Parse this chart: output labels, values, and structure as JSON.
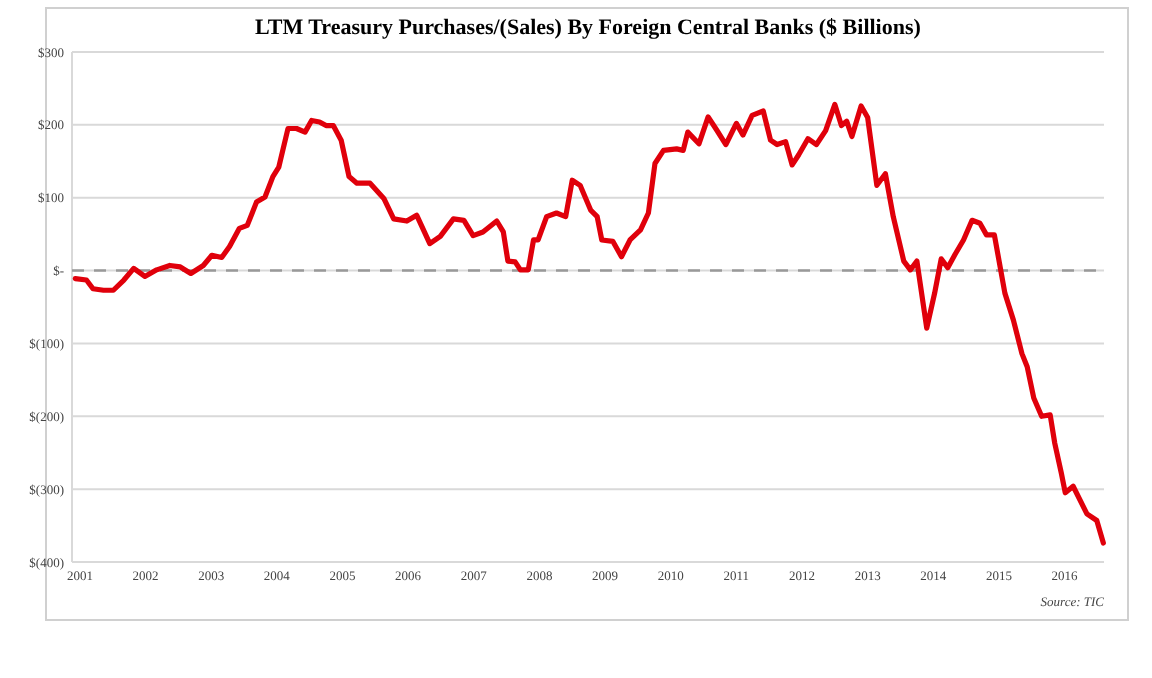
{
  "chart_data": {
    "type": "line",
    "title": "LTM Treasury Purchases/(Sales) By Foreign Central Banks ($ Billions)",
    "annotations": [
      "Source: TIC"
    ],
    "x": [
      2000.93,
      2001.1,
      2001.2,
      2001.36,
      2001.51,
      2001.67,
      2001.82,
      2001.99,
      2002.17,
      2002.37,
      2002.53,
      2002.69,
      2002.88,
      2003.01,
      2003.16,
      2003.28,
      2003.43,
      2003.55,
      2003.69,
      2003.82,
      2003.94,
      2004.03,
      2004.17,
      2004.3,
      2004.43,
      2004.53,
      2004.65,
      2004.75,
      2004.86,
      2004.98,
      2005.1,
      2005.22,
      2005.42,
      2005.63,
      2005.78,
      2005.98,
      2006.13,
      2006.33,
      2006.49,
      2006.69,
      2006.85,
      2006.99,
      2007.14,
      2007.35,
      2007.45,
      2007.52,
      2007.63,
      2007.71,
      2007.83,
      2007.91,
      2007.98,
      2008.11,
      2008.26,
      2008.4,
      2008.5,
      2008.62,
      2008.78,
      2008.88,
      2008.95,
      2009.12,
      2009.25,
      2009.38,
      2009.54,
      2009.66,
      2009.76,
      2009.89,
      2010.09,
      2010.19,
      2010.26,
      2010.43,
      2010.57,
      2010.7,
      2010.84,
      2011.0,
      2011.1,
      2011.24,
      2011.41,
      2011.52,
      2011.62,
      2011.75,
      2011.85,
      2011.95,
      2012.09,
      2012.22,
      2012.36,
      2012.5,
      2012.6,
      2012.68,
      2012.76,
      2012.9,
      2013.0,
      2013.14,
      2013.27,
      2013.39,
      2013.55,
      2013.65,
      2013.75,
      2013.9,
      2014.02,
      2014.12,
      2014.22,
      2014.33,
      2014.46,
      2014.59,
      2014.71,
      2014.81,
      2014.93,
      2015.09,
      2015.22,
      2015.35,
      2015.43,
      2015.53,
      2015.65,
      2015.78,
      2015.85,
      2015.95,
      2016.01,
      2016.13,
      2016.34,
      2016.49,
      2016.59
    ],
    "series": [
      {
        "color": "#e0000b",
        "values": [
          -11,
          -13,
          -25,
          -27,
          -27,
          -13,
          3,
          -8,
          1,
          7,
          5,
          -4,
          7,
          21,
          18,
          33,
          58,
          62,
          94,
          101,
          129,
          142,
          195,
          195,
          190,
          206,
          204,
          199,
          199,
          179,
          129,
          120,
          120,
          99,
          71,
          68,
          76,
          37,
          47,
          71,
          69,
          48,
          53,
          68,
          53,
          13,
          12,
          1,
          1,
          42,
          42,
          74,
          79,
          74,
          124,
          117,
          83,
          74,
          42,
          40,
          19,
          42,
          56,
          79,
          147,
          165,
          167,
          165,
          190,
          174,
          211,
          193,
          173,
          202,
          186,
          213,
          219,
          179,
          173,
          177,
          145,
          159,
          181,
          173,
          192,
          228,
          199,
          205,
          184,
          226,
          210,
          117,
          133,
          74,
          13,
          1,
          13,
          -79,
          -31,
          16,
          4,
          22,
          42,
          69,
          65,
          49,
          49,
          -31,
          -68,
          -114,
          -132,
          -175,
          -200,
          -198,
          -237,
          -278,
          -305,
          -296,
          -334,
          -343,
          -374
        ]
      }
    ],
    "xlim": [
      2000.88,
      2016.6
    ],
    "xticks": [
      2001,
      2002,
      2003,
      2004,
      2005,
      2006,
      2007,
      2008,
      2009,
      2010,
      2011,
      2012,
      2013,
      2014,
      2015,
      2016
    ],
    "ylim": [
      -400,
      300
    ],
    "yticks": [
      {
        "value": -400,
        "label": "$(400)"
      },
      {
        "value": -300,
        "label": "$(300)"
      },
      {
        "value": -200,
        "label": "$(200)"
      },
      {
        "value": -100,
        "label": "$(100)"
      },
      {
        "value": 0,
        "label": "$-"
      },
      {
        "value": 100,
        "label": "$100"
      },
      {
        "value": 200,
        "label": "$200"
      },
      {
        "value": 300,
        "label": "$300"
      }
    ],
    "grid": "y",
    "marker": "none",
    "line_style": "solid",
    "ref_lines": [
      {
        "axis": "y",
        "value": 0,
        "color": "#999999",
        "line_style": "dashed"
      }
    ]
  }
}
